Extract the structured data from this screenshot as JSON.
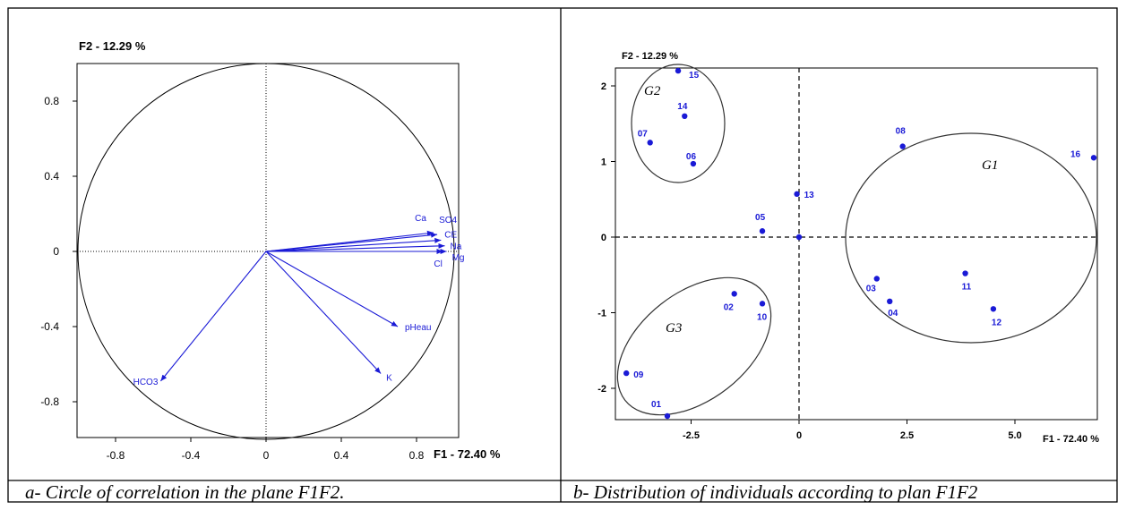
{
  "captions": {
    "a": "a- Circle of correlation in the plane F1F2.",
    "b": "b-    Distribution of individuals according to plan F1F2"
  },
  "chart_data": [
    {
      "type": "scatter",
      "subtype": "correlation-circle",
      "xlabel": "F1  -  72.40 %",
      "ylabel": "F2  -  12.29 %",
      "xlim": [
        -1,
        1
      ],
      "ylim": [
        -1,
        1
      ],
      "xticks": [
        "-0.8",
        "-0.4",
        "0",
        "0.4",
        "0.8"
      ],
      "yticks": [
        "0.8",
        "0.4",
        "0",
        "-0.4",
        "-0.8"
      ],
      "xtick_values": [
        -0.8,
        -0.4,
        0,
        0.4,
        0.8
      ],
      "ytick_values": [
        0.8,
        0.4,
        0,
        -0.4,
        -0.8
      ],
      "color": "#1a1ad6",
      "vectors": [
        {
          "label": "Ca",
          "x": 0.89,
          "y": 0.1
        },
        {
          "label": "SO4",
          "x": 0.91,
          "y": 0.09
        },
        {
          "label": "CE",
          "x": 0.93,
          "y": 0.06
        },
        {
          "label": "Na",
          "x": 0.95,
          "y": 0.03
        },
        {
          "label": "Mg",
          "x": 0.96,
          "y": 0.0
        },
        {
          "label": "Cl",
          "x": 0.94,
          "y": 0.0
        },
        {
          "label": "pHeau",
          "x": 0.7,
          "y": -0.4
        },
        {
          "label": "K",
          "x": 0.61,
          "y": -0.65
        },
        {
          "label": "HCO3",
          "x": -0.56,
          "y": -0.69
        }
      ]
    },
    {
      "type": "scatter",
      "xlabel": "F1  -  72.40 %",
      "ylabel": "F2  -  12.29 %",
      "xlim": [
        -4,
        7.5
      ],
      "ylim": [
        -2.5,
        2.4
      ],
      "xticks": [
        "-2.5",
        "0",
        "2.5",
        "5.0"
      ],
      "yticks": [
        "2",
        "1",
        "0",
        "-1",
        "-2"
      ],
      "xtick_values": [
        -2.5,
        0,
        2.5,
        5.0
      ],
      "ytick_values": [
        2,
        1,
        0,
        -1,
        -2
      ],
      "color": "#1a1ad6",
      "points": [
        {
          "label": "15",
          "x": -2.8,
          "y": 2.2
        },
        {
          "label": "14",
          "x": -2.65,
          "y": 1.6
        },
        {
          "label": "07",
          "x": -3.45,
          "y": 1.25
        },
        {
          "label": "06",
          "x": -2.45,
          "y": 0.97
        },
        {
          "label": "08",
          "x": 2.4,
          "y": 1.2
        },
        {
          "label": "16",
          "x": 7.45,
          "y": 1.05
        },
        {
          "label": "13",
          "x": -0.05,
          "y": 0.57
        },
        {
          "label": "05",
          "x": -0.85,
          "y": 0.08
        },
        {
          "label": "",
          "x": 0.0,
          "y": 0.0
        },
        {
          "label": "03",
          "x": 1.8,
          "y": -0.55
        },
        {
          "label": "04",
          "x": 2.1,
          "y": -0.85
        },
        {
          "label": "11",
          "x": 3.85,
          "y": -0.48
        },
        {
          "label": "12",
          "x": 4.5,
          "y": -0.95
        },
        {
          "label": "02",
          "x": -1.5,
          "y": -0.75
        },
        {
          "label": "10",
          "x": -0.85,
          "y": -0.88
        },
        {
          "label": "09",
          "x": -4.0,
          "y": -1.8
        },
        {
          "label": "01",
          "x": -3.05,
          "y": -2.45
        }
      ],
      "groups": [
        {
          "label": "G1"
        },
        {
          "label": "G2"
        },
        {
          "label": "G3"
        }
      ]
    }
  ]
}
